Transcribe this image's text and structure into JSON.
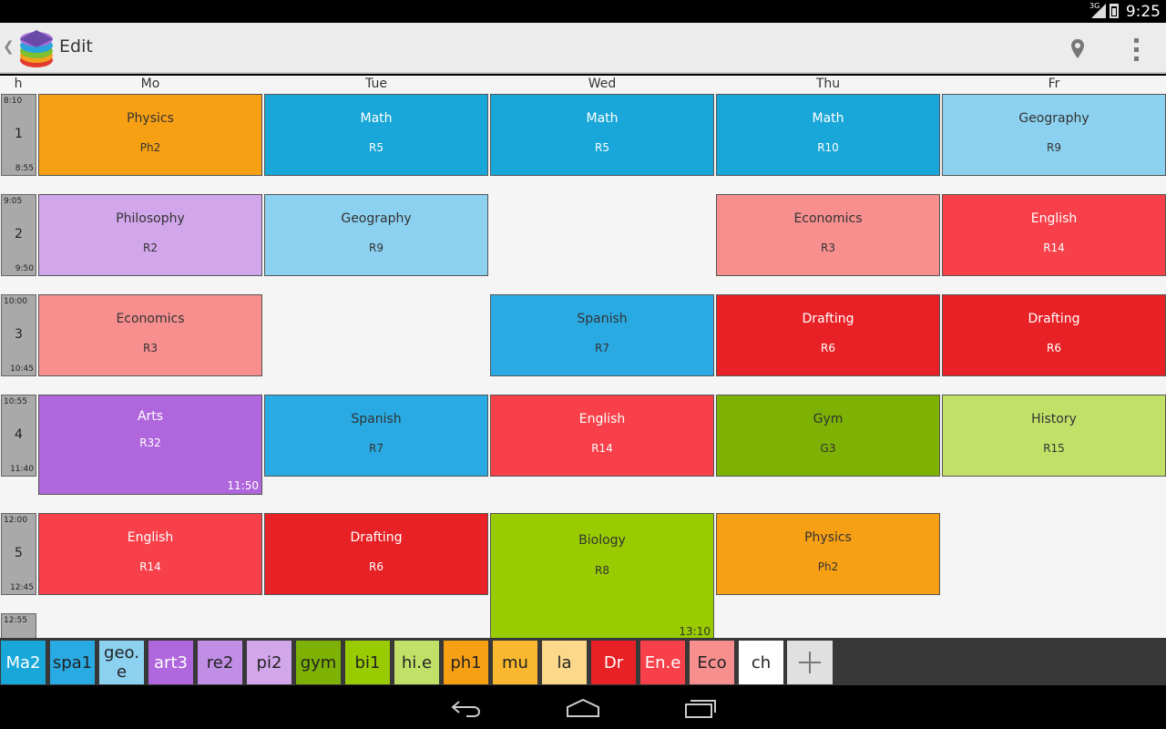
{
  "status_bar": {
    "network": "3G",
    "time": "9:25"
  },
  "action_bar": {
    "title": "Edit",
    "icons": [
      "app-logo-icon",
      "place-icon",
      "overflow-menu-icon"
    ]
  },
  "timetable": {
    "corner_label": "h",
    "days": [
      "Mo",
      "Tue",
      "Wed",
      "Thu",
      "Fr"
    ],
    "hours": [
      {
        "number": "1",
        "start": "8:10",
        "end": "8:55"
      },
      {
        "number": "2",
        "start": "9:05",
        "end": "9:50"
      },
      {
        "number": "3",
        "start": "10:00",
        "end": "10:45"
      },
      {
        "number": "4",
        "start": "10:55",
        "end": "11:40"
      },
      {
        "number": "5",
        "start": "12:00",
        "end": "12:45"
      },
      {
        "number": "",
        "start": "12:55",
        "end": ""
      }
    ],
    "lessons": [
      {
        "day": 0,
        "hour": 0,
        "subject": "Physics",
        "room": "Ph2",
        "color": "#F8A014",
        "dark_text": true
      },
      {
        "day": 1,
        "hour": 0,
        "subject": "Math",
        "room": "R5",
        "color": "#19A6D8",
        "dark_text": false
      },
      {
        "day": 2,
        "hour": 0,
        "subject": "Math",
        "room": "R5",
        "color": "#19A6D8",
        "dark_text": false
      },
      {
        "day": 3,
        "hour": 0,
        "subject": "Math",
        "room": "R10",
        "color": "#19A6D8",
        "dark_text": false
      },
      {
        "day": 4,
        "hour": 0,
        "subject": "Geography",
        "room": "R9",
        "color": "#8CD1F0",
        "dark_text": true
      },
      {
        "day": 0,
        "hour": 1,
        "subject": "Philosophy",
        "room": "R2",
        "color": "#D2A6EA",
        "dark_text": true
      },
      {
        "day": 1,
        "hour": 1,
        "subject": "Geography",
        "room": "R9",
        "color": "#8CD1F0",
        "dark_text": true
      },
      {
        "day": 3,
        "hour": 1,
        "subject": "Economics",
        "room": "R3",
        "color": "#F78F8F",
        "dark_text": true
      },
      {
        "day": 4,
        "hour": 1,
        "subject": "English",
        "room": "R14",
        "color": "#F8404A",
        "dark_text": false
      },
      {
        "day": 0,
        "hour": 2,
        "subject": "Economics",
        "room": "R3",
        "color": "#F78F8F",
        "dark_text": true
      },
      {
        "day": 2,
        "hour": 2,
        "subject": "Spanish",
        "room": "R7",
        "color": "#2AAAE3",
        "dark_text": true
      },
      {
        "day": 3,
        "hour": 2,
        "subject": "Drafting",
        "room": "R6",
        "color": "#E82126",
        "dark_text": false
      },
      {
        "day": 4,
        "hour": 2,
        "subject": "Drafting",
        "room": "R6",
        "color": "#E82126",
        "dark_text": false
      },
      {
        "day": 0,
        "hour": 3,
        "subject": "Arts",
        "room": "R32",
        "color": "#B066DC",
        "dark_text": false,
        "end_time": "11:50"
      },
      {
        "day": 1,
        "hour": 3,
        "subject": "Spanish",
        "room": "R7",
        "color": "#2AAAE3",
        "dark_text": true
      },
      {
        "day": 2,
        "hour": 3,
        "subject": "English",
        "room": "R14",
        "color": "#F8404A",
        "dark_text": false
      },
      {
        "day": 3,
        "hour": 3,
        "subject": "Gym",
        "room": "G3",
        "color": "#7DB103",
        "dark_text": true
      },
      {
        "day": 4,
        "hour": 3,
        "subject": "History",
        "room": "R15",
        "color": "#C1E068",
        "dark_text": true
      },
      {
        "day": 0,
        "hour": 4,
        "subject": "English",
        "room": "R14",
        "color": "#F8404A",
        "dark_text": false
      },
      {
        "day": 1,
        "hour": 4,
        "subject": "Drafting",
        "room": "R6",
        "color": "#E82126",
        "dark_text": false
      },
      {
        "day": 2,
        "hour": 4,
        "subject": "Biology",
        "room": "R8",
        "color": "#99CC00",
        "dark_text": true,
        "end_time": "13:10"
      },
      {
        "day": 3,
        "hour": 4,
        "subject": "Physics",
        "room": "Ph2",
        "color": "#F8A014",
        "dark_text": true
      }
    ]
  },
  "subject_bar": {
    "chips": [
      {
        "label": "Ma2",
        "color": "#19A6D8",
        "dark_text": false
      },
      {
        "label": "spa1",
        "color": "#2AAAE3",
        "dark_text": true
      },
      {
        "label": "geo.\ne",
        "color": "#8CD1F0",
        "dark_text": true
      },
      {
        "label": "art3",
        "color": "#B066DC",
        "dark_text": false
      },
      {
        "label": "re2",
        "color": "#C18EE6",
        "dark_text": true
      },
      {
        "label": "pi2",
        "color": "#D2A6EA",
        "dark_text": true
      },
      {
        "label": "gym",
        "color": "#7DB103",
        "dark_text": true
      },
      {
        "label": "bi1",
        "color": "#99CC00",
        "dark_text": true
      },
      {
        "label": "hi.e",
        "color": "#C1E068",
        "dark_text": true
      },
      {
        "label": "ph1",
        "color": "#F8A014",
        "dark_text": true
      },
      {
        "label": "mu",
        "color": "#FAB830",
        "dark_text": true
      },
      {
        "label": "la",
        "color": "#FBD88A",
        "dark_text": true
      },
      {
        "label": "Dr",
        "color": "#E82126",
        "dark_text": false
      },
      {
        "label": "En.e",
        "color": "#F8404A",
        "dark_text": false
      },
      {
        "label": "Eco",
        "color": "#F78F8F",
        "dark_text": true
      },
      {
        "label": "ch",
        "color": "#FFFFFF",
        "dark_text": true
      }
    ],
    "add_icon": "add-icon"
  },
  "nav_bar": {
    "icons": [
      "back-icon",
      "home-icon",
      "recent-apps-icon"
    ]
  }
}
